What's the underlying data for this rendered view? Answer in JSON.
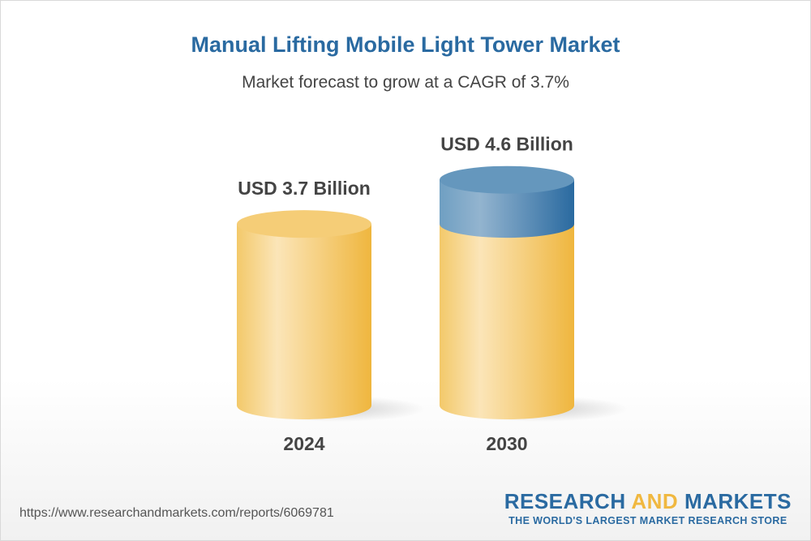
{
  "chart_data": {
    "type": "bar",
    "style": "3d-cylinder",
    "title": "Manual Lifting Mobile Light Tower Market",
    "subtitle": "Market forecast to grow at a CAGR of 3.7%",
    "categories": [
      "2024",
      "2030"
    ],
    "values": [
      3.7,
      4.6
    ],
    "data_labels": [
      "USD 3.7 Billion",
      "USD 4.6 Billion"
    ],
    "unit": "USD Billion",
    "colors": {
      "base": "#f2c15a",
      "growth": "#2e6aa0"
    }
  },
  "footer": {
    "url": "https://www.researchandmarkets.com/reports/6069781",
    "logo_part1": "RESEARCH ",
    "logo_part2": "AND",
    "logo_part3": " MARKETS",
    "tagline": "THE WORLD'S LARGEST MARKET RESEARCH STORE"
  }
}
